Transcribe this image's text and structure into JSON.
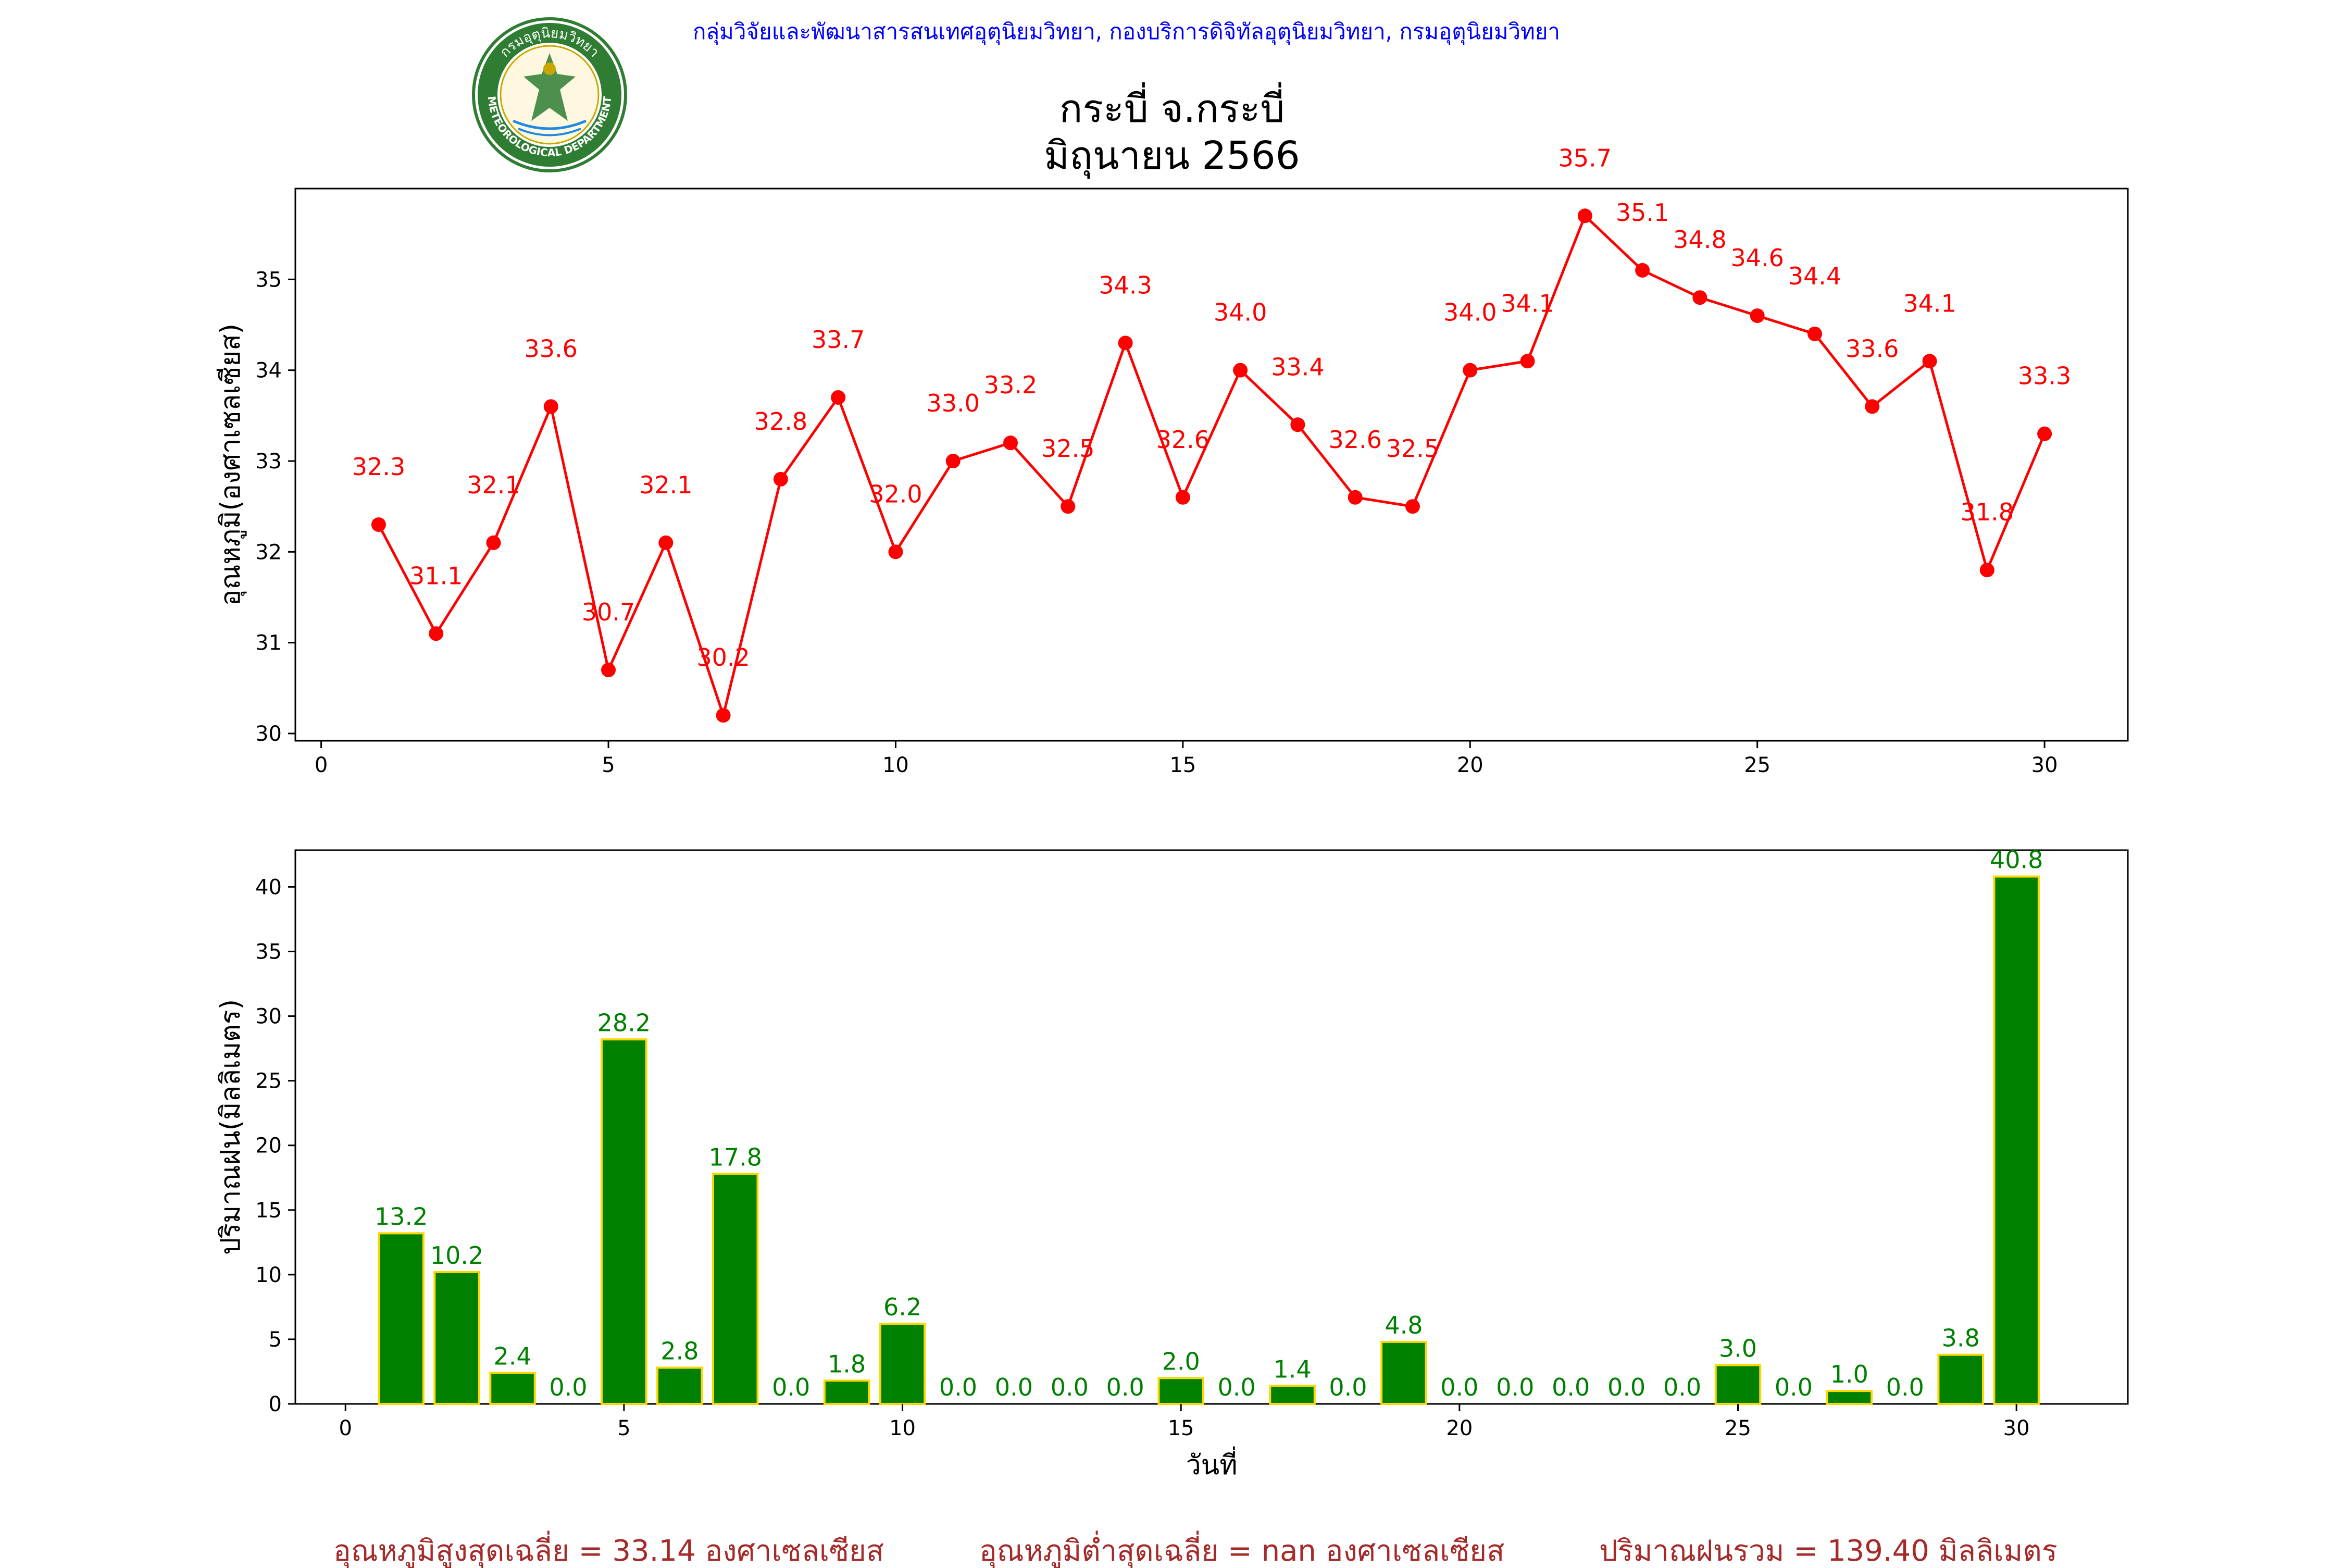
{
  "header": {
    "agency_line": "กลุ่มวิจัยและพัฒนาสารสนเทศอุตุนิยมวิทยา, กองบริการดิจิทัลอุตุนิยมวิทยา, กรมอุตุนิยมวิทยา",
    "logo_icon": "meteorological-department-seal-icon",
    "logo_text_top": "กรมอุตุนิยมวิทยา",
    "logo_text_bottom": "METEOROLOGICAL DEPARTMENT"
  },
  "title_line1": "กระบี่ จ.กระบี่",
  "title_line2": "มิถุนายน 2566",
  "colors": {
    "temp_line": "#ff0000",
    "rain_bar_fill": "#008000",
    "rain_bar_edge": "#ffd700",
    "rain_label": "#008000",
    "header": "#0000ff",
    "footer": "#a52a2a"
  },
  "chart_data": [
    {
      "type": "line",
      "ylabel": "อุณหภูมิ(องศาเซลเซียส)",
      "xlabel": "",
      "x": [
        1,
        2,
        3,
        4,
        5,
        6,
        7,
        8,
        9,
        10,
        11,
        12,
        13,
        14,
        15,
        16,
        17,
        18,
        19,
        20,
        21,
        22,
        23,
        24,
        25,
        26,
        27,
        28,
        29,
        30
      ],
      "values": [
        32.3,
        31.1,
        32.1,
        33.6,
        30.7,
        32.1,
        30.2,
        32.8,
        33.7,
        32.0,
        33.0,
        33.2,
        32.5,
        34.3,
        32.6,
        34.0,
        33.4,
        32.6,
        32.5,
        34.0,
        34.1,
        35.7,
        35.1,
        34.8,
        34.6,
        34.4,
        33.6,
        34.1,
        31.8,
        33.3
      ],
      "labels": [
        "32.3",
        "31.1",
        "32.1",
        "33.6",
        "30.7",
        "32.1",
        "30.2",
        "32.8",
        "33.7",
        "32.0",
        "33.0",
        "33.2",
        "32.5",
        "34.3",
        "32.6",
        "34.0",
        "33.4",
        "32.6",
        "32.5",
        "34.0",
        "34.1",
        "35.7",
        "35.1",
        "34.8",
        "34.6",
        "34.4",
        "33.6",
        "34.1",
        "31.8",
        "33.3"
      ],
      "xlim": [
        -0.45,
        31.45
      ],
      "ylim": [
        29.92,
        36.0
      ],
      "xticks": [
        "0",
        "5",
        "10",
        "15",
        "20",
        "25",
        "30"
      ],
      "yticks": [
        "30",
        "31",
        "32",
        "33",
        "34",
        "35"
      ],
      "grid": false
    },
    {
      "type": "bar",
      "xlabel": "วันที่",
      "ylabel": "ปริมาณฝน(มิลลิเมตร)",
      "x": [
        1,
        2,
        3,
        4,
        5,
        6,
        7,
        8,
        9,
        10,
        11,
        12,
        13,
        14,
        15,
        16,
        17,
        18,
        19,
        20,
        21,
        22,
        23,
        24,
        25,
        26,
        27,
        28,
        29,
        30
      ],
      "values": [
        13.2,
        10.2,
        2.4,
        0.0,
        28.2,
        2.8,
        17.8,
        0.0,
        1.8,
        6.2,
        0.0,
        0.0,
        0.0,
        0.0,
        2.0,
        0.0,
        1.4,
        0.0,
        4.8,
        0.0,
        0.0,
        0.0,
        0.0,
        0.0,
        3.0,
        0.0,
        1.0,
        0.0,
        3.8,
        40.8
      ],
      "labels": [
        "13.2",
        "10.2",
        "2.4",
        "0.0",
        "28.2",
        "2.8",
        "17.8",
        "0.0",
        "1.8",
        "6.2",
        "0.0",
        "0.0",
        "0.0",
        "0.0",
        "2.0",
        "0.0",
        "1.4",
        "0.0",
        "4.8",
        "0.0",
        "0.0",
        "0.0",
        "0.0",
        "0.0",
        "3.0",
        "0.0",
        "1.0",
        "0.0",
        "3.8",
        "40.8"
      ],
      "xlim": [
        -0.9,
        32.0
      ],
      "ylim": [
        0,
        42.84
      ],
      "xticks": [
        "0",
        "5",
        "10",
        "15",
        "20",
        "25",
        "30"
      ],
      "yticks": [
        "0",
        "5",
        "10",
        "15",
        "20",
        "25",
        "30",
        "35",
        "40"
      ],
      "grid": false
    }
  ],
  "footer": {
    "avg_max_temp": "อุณหภูมิสูงสุดเฉลี่ย = 33.14 องศาเซลเซียส",
    "avg_min_temp": "อุณหภูมิต่ำสุดเฉลี่ย = nan องศาเซลเซียส",
    "total_rain": "ปริมาณฝนรวม = 139.40 มิลลิเมตร"
  }
}
